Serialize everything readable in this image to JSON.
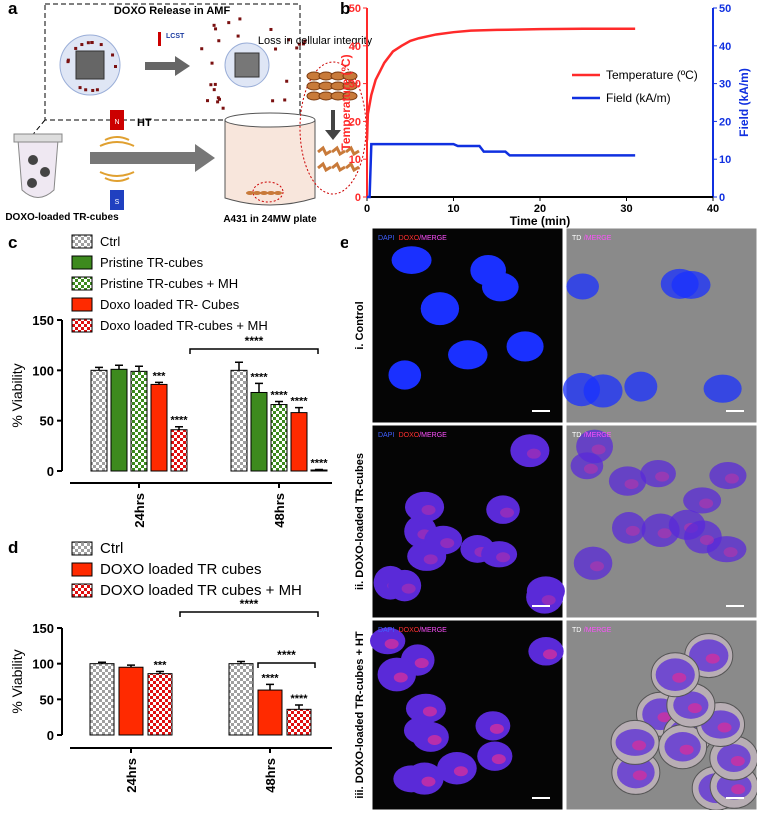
{
  "panel_labels": [
    "a",
    "b",
    "c",
    "d",
    "e"
  ],
  "schematic": {
    "title": "DOXO Release in AMF",
    "lcst": "LCST",
    "field_label": "HT",
    "magnet_poles": [
      "N",
      "S"
    ],
    "tube_label": "DOXO-loaded TR-cubes",
    "plate_label": "A431 in 24MW plate",
    "outcome": "Loss in cellular integrity"
  },
  "chart_data": [
    {
      "type": "line",
      "x_label": "Time (min)",
      "y_label": "Temperature (ºC)",
      "y2_label": "Field (kA/m)",
      "xlim": [
        0,
        40
      ],
      "xticks": [
        0,
        10,
        20,
        30,
        40
      ],
      "ylim": [
        0,
        50
      ],
      "yticks": [
        0,
        10,
        20,
        30,
        40,
        50
      ],
      "y2lim": [
        0,
        50
      ],
      "y2ticks": [
        0,
        10,
        20,
        30,
        40,
        50
      ],
      "legend": "right",
      "series": [
        {
          "name": "Temperature (ºC)",
          "color": "#ff2a2a",
          "x": [
            0,
            0.1,
            0.5,
            1,
            2,
            3,
            4,
            5,
            6,
            8,
            10,
            12,
            15,
            20,
            25,
            31
          ],
          "values": [
            15,
            22,
            27,
            31,
            35.5,
            38.5,
            40,
            41.3,
            42,
            43,
            43.6,
            44,
            44.2,
            44.4,
            44.5,
            44.5
          ]
        },
        {
          "name": "Field (kA/m)",
          "color": "#1030e0",
          "axis": "y2",
          "x": [
            0,
            0.3,
            0.5,
            10,
            10.5,
            13,
            13.5,
            16,
            16.5,
            31
          ],
          "values": [
            0,
            0,
            14,
            14,
            13.5,
            13.5,
            12,
            12,
            11,
            11
          ]
        }
      ]
    },
    {
      "type": "bar",
      "y_label": "% Viability",
      "categories": [
        "24hrs",
        "48hrs"
      ],
      "ylim": [
        0,
        150
      ],
      "yticks": [
        0,
        50,
        100,
        150
      ],
      "brackets": [
        "****"
      ],
      "series": [
        {
          "name": "Ctrl",
          "color": "#a0a0a0",
          "hatch": true,
          "values": [
            100,
            100
          ],
          "errors": [
            3,
            8
          ],
          "significance": [
            null,
            null
          ]
        },
        {
          "name": "Pristine TR-cubes",
          "color": "#3d8a1e",
          "hatch": false,
          "values": [
            101,
            78
          ],
          "errors": [
            4,
            9
          ],
          "significance": [
            null,
            "****"
          ]
        },
        {
          "name": "Pristine TR-cubes + MH",
          "color": "#3d8a1e",
          "hatch": true,
          "values": [
            99,
            66
          ],
          "errors": [
            5,
            3
          ],
          "significance": [
            null,
            "****"
          ]
        },
        {
          "name": "Doxo loaded TR- Cubes",
          "color": "#ff2a00",
          "hatch": false,
          "values": [
            86,
            58
          ],
          "errors": [
            2,
            5
          ],
          "significance": [
            "***",
            "****"
          ]
        },
        {
          "name": "Doxo loaded TR-cubes + MH",
          "color": "#e01010",
          "hatch": true,
          "values": [
            41,
            1
          ],
          "errors": [
            3,
            0.5
          ],
          "significance": [
            "****",
            "****"
          ]
        }
      ]
    },
    {
      "type": "bar",
      "y_label": "% Viability",
      "categories": [
        "24hrs",
        "48hrs"
      ],
      "ylim": [
        0,
        150
      ],
      "yticks": [
        0,
        50,
        100,
        150
      ],
      "brackets": [
        "****",
        "****"
      ],
      "series": [
        {
          "name": "Ctrl",
          "color": "#a0a0a0",
          "hatch": true,
          "values": [
            100,
            100
          ],
          "errors": [
            2,
            3
          ],
          "significance": [
            null,
            null
          ]
        },
        {
          "name": "DOXO loaded TR cubes",
          "color": "#ff2a00",
          "hatch": false,
          "values": [
            95,
            63
          ],
          "errors": [
            3,
            8
          ],
          "significance": [
            null,
            "****"
          ]
        },
        {
          "name": "DOXO loaded TR cubes + MH",
          "color": "#e01010",
          "hatch": true,
          "values": [
            86,
            36
          ],
          "errors": [
            3,
            6
          ],
          "significance": [
            "***",
            "****"
          ]
        }
      ]
    }
  ],
  "micrographs": {
    "rows": [
      "i. Control",
      "ii. DOXO-loaded TR-cubes",
      "iii. DOXO-loaded TR-cubes + HT"
    ],
    "fluorescence_channels": [
      {
        "text": "DAPI",
        "color": "#4060ff"
      },
      {
        "text": "DOXO",
        "color": "#ff3030"
      },
      {
        "text": "/MERGE",
        "color": "#ff50ff"
      }
    ],
    "transmitted_channels": [
      {
        "text": "TD",
        "color": "#ffffff"
      },
      {
        "text": "/MERGE",
        "color": "#ff50ff"
      }
    ]
  }
}
